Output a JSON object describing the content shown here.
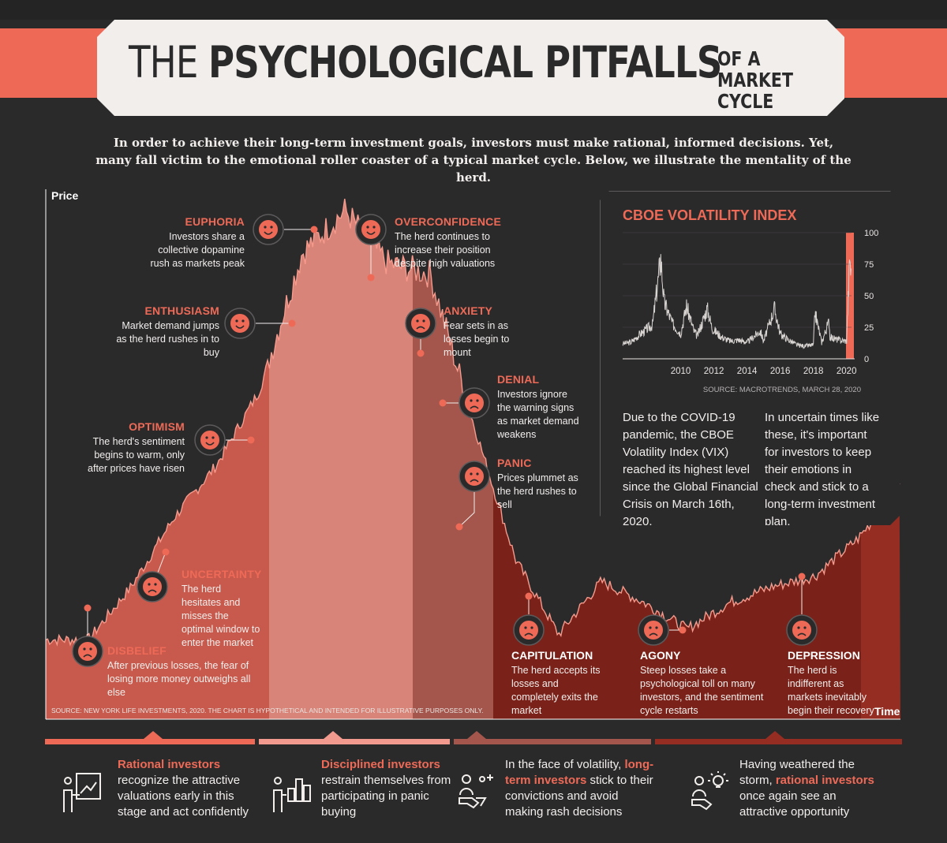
{
  "title": {
    "part1": "THE ",
    "part2": "PSYCHOLOGICAL PITFALLS",
    "sub": "OF A MARKET CYCLE"
  },
  "intro": "In order to achieve their long-term investment goals, investors must make rational, informed decisions. Yet, many fall victim to the emotional roller coaster of a typical market cycle. Below, we illustrate the mentality of the herd.",
  "axes": {
    "y": "Price",
    "x": "Time"
  },
  "stages": [
    {
      "name": "EUPHORIA",
      "text": "Investors share a collective dopamine rush as markets peak"
    },
    {
      "name": "OVERCONFIDENCE",
      "text": "The herd continues to increase their position despite high valuations"
    },
    {
      "name": "ENTHUSIASM",
      "text": "Market demand jumps as the herd rushes in to buy"
    },
    {
      "name": "ANXIETY",
      "text": "Fear sets in as losses begin to mount"
    },
    {
      "name": "DENIAL",
      "text": "Investors ignore the warning signs as market demand weakens"
    },
    {
      "name": "OPTIMISM",
      "text": "The herd's sentiment begins to warm, only after prices have risen"
    },
    {
      "name": "PANIC",
      "text": "Prices plummet as the herd rushes to sell"
    },
    {
      "name": "UNCERTAINTY",
      "text": "The herd hesitates and misses the optimal window to enter the market"
    },
    {
      "name": "DISBELIEF",
      "text": "After previous losses, the fear of losing more money outweighs all else"
    },
    {
      "name": "CAPITULATION",
      "text": "The herd accepts its losses and completely exits the market"
    },
    {
      "name": "AGONY",
      "text": "Steep losses take a psychological toll on many investors, and the sentiment cycle restarts"
    },
    {
      "name": "DEPRESSION",
      "text": "The herd is indifferent as markets inevitably begin their recovery"
    }
  ],
  "source_note": "SOURCE: NEW YORK LIFE INVESTMENTS, 2020. THE CHART IS HYPOTHETICAL AND INTENDED FOR ILLUSTRATIVE PURPOSES ONLY.",
  "vix": {
    "title": "CBOE VOLATILITY INDEX",
    "source": "SOURCE: MACROTRENDS, MARCH 28, 2020",
    "p1": "Due to the COVID-19 pandemic, the CBOE Volatility Index (VIX) reached its highest level since the Global Financial Crisis on March 16th, 2020.",
    "p2": "In uncertain times like these, it's important for investors to keep their emotions in check and stick to a long-term investment plan."
  },
  "chart_data": [
    {
      "type": "area",
      "title": "The Psychological Pitfalls of a Market Cycle",
      "xlabel": "Time",
      "ylabel": "Price",
      "x": [
        0,
        5,
        10,
        15,
        20,
        25,
        30,
        35,
        40,
        45,
        50,
        55,
        60,
        65,
        70,
        75,
        80,
        85,
        90,
        95,
        100
      ],
      "values": [
        15,
        15,
        25,
        38,
        48,
        62,
        88,
        96,
        86,
        84,
        56,
        30,
        16,
        26,
        22,
        17,
        22,
        25,
        27,
        34,
        44
      ],
      "annotations": [
        "DISBELIEF",
        "UNCERTAINTY",
        "OPTIMISM",
        "ENTHUSIASM",
        "EUPHORIA",
        "OVERCONFIDENCE",
        "ANXIETY",
        "DENIAL",
        "PANIC",
        "CAPITULATION",
        "AGONY",
        "DEPRESSION"
      ]
    },
    {
      "type": "line",
      "title": "CBOE VOLATILITY INDEX",
      "x": [
        2006.5,
        2007,
        2007.5,
        2008,
        2008.3,
        2008.8,
        2009,
        2009.5,
        2010,
        2010.35,
        2010.8,
        2011,
        2011.6,
        2011.9,
        2012.5,
        2013,
        2013.5,
        2014,
        2014.8,
        2015,
        2015.65,
        2016,
        2016.5,
        2017,
        2017.5,
        2018,
        2018.1,
        2018.5,
        2018.95,
        2019,
        2019.5,
        2020,
        2020.2,
        2020.3
      ],
      "values": [
        12,
        13,
        19,
        24,
        27,
        80,
        45,
        28,
        20,
        42,
        22,
        18,
        40,
        24,
        17,
        14,
        15,
        13,
        22,
        14,
        40,
        20,
        15,
        11,
        10,
        11,
        37,
        13,
        30,
        17,
        15,
        14,
        82,
        60
      ],
      "xlim": [
        2006.5,
        2020.3
      ],
      "ylim": [
        0,
        100
      ],
      "yticks": [
        0,
        25,
        50,
        75,
        100
      ],
      "xticks": [
        2010,
        2012,
        2014,
        2016,
        2018,
        2020
      ]
    }
  ],
  "bottom": [
    {
      "hl": "Rational investors",
      "text": "recognize the attractive valuations early in this stage and act confidently"
    },
    {
      "hl": "Disciplined investors",
      "text": "restrain themselves from participating in panic buying"
    },
    {
      "pre": "In the face of volatility, ",
      "hl": "long-term investors",
      "text": " stick to their convictions and avoid making rash decisions"
    },
    {
      "pre": "Having weathered the storm, ",
      "hl": "rational investors",
      "text": " once again see an attractive opportunity"
    }
  ],
  "colors": {
    "accent": "#ee6a57",
    "bg": "#2b2a2b",
    "zone1": "#c85a4d",
    "zone2": "#d98478",
    "zone3": "#a4564c",
    "zone4": "#7a2219",
    "zone5": "#962d22"
  }
}
